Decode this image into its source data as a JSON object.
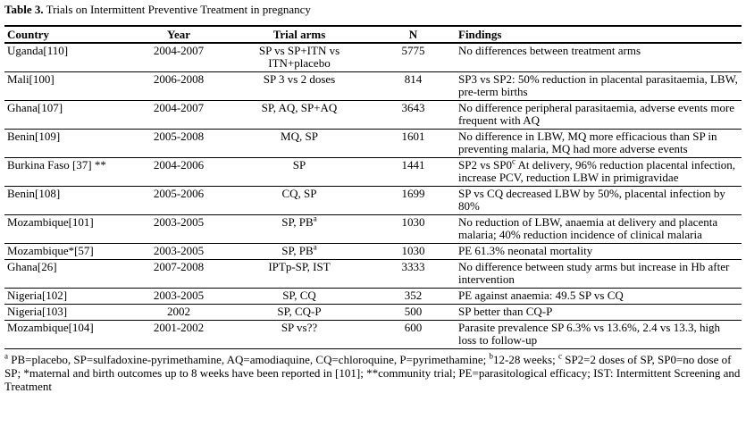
{
  "header": {
    "label": "Table 3.",
    "title": "Trials on Intermittent Preventive Treatment in pregnancy"
  },
  "table": {
    "columns": [
      "Country",
      "Year",
      "Trial arms",
      "N",
      "Findings"
    ],
    "rows": [
      [
        "Uganda[110]",
        "2004-2007",
        "SP vs SP+ITN vs ITN+placebo",
        "5775",
        "No differences between treatment arms"
      ],
      [
        "Mali[100]",
        "2006-2008",
        "SP 3 vs 2 doses",
        "814",
        "SP3 vs SP2: 50% reduction in placental parasitaemia, LBW, pre-term births"
      ],
      [
        "Ghana[107]",
        "2004-2007",
        "SP, AQ, SP+AQ",
        "3643",
        "No difference peripheral parasitaemia, adverse events more frequent with AQ"
      ],
      [
        "Benin[109]",
        "2005-2008",
        "MQ, SP",
        "1601",
        "No difference in LBW, MQ more efficacious than SP in preventing malaria, MQ had more adverse events"
      ],
      [
        "Burkina Faso [37] **",
        "2004-2006",
        "SP",
        "1441",
        [
          "SP2 vs SP0",
          {
            "sup": "c"
          },
          " At delivery, 96% reduction placental infection, increase PCV, reduction LBW in primigravidae"
        ]
      ],
      [
        "Benin[108]",
        "2005-2006",
        "CQ, SP",
        "1699",
        "SP vs CQ decreased LBW by 50%, placental infection by 80%"
      ],
      [
        "Mozambique[101]",
        "2003-2005",
        [
          "SP, PB",
          {
            "sup": "a"
          }
        ],
        "1030",
        "No reduction of LBW, anaemia at delivery and placenta malaria; 40% reduction incidence of clinical malaria"
      ],
      [
        "Mozambique*[57]",
        "2003-2005",
        [
          "SP, PB",
          {
            "sup": "a"
          }
        ],
        "1030",
        "PE 61.3% neonatal mortality"
      ],
      [
        "Ghana[26]",
        "2007-2008",
        "IPTp-SP, IST",
        "3333",
        "No difference between study arms but increase in Hb after intervention"
      ],
      [
        "Nigeria[102]",
        "2003-2005",
        "SP, CQ",
        "352",
        "PE against anaemia: 49.5 SP vs CQ"
      ],
      [
        "Nigeria[103]",
        "2002",
        "SP, CQ-P",
        "500",
        "SP better than CQ-P"
      ],
      [
        "Mozambique[104]",
        "2001-2002",
        "SP vs??",
        "600",
        "Parasite prevalence SP 6.3% vs 13.6%, 2.4 vs 13.3, high loss to follow-up"
      ]
    ]
  },
  "footnote": [
    {
      "sup": "a"
    },
    " PB=placebo, SP=sulfadoxine-pyrimethamine, AQ=amodiaquine, CQ=chloroquine, P=pyrimethamine; ",
    {
      "sup": "b"
    },
    "12-28 weeks; ",
    {
      "sup": "c"
    },
    " SP2=2 doses of SP, SP0=no dose of SP; *maternal and birth outcomes up to 8 weeks have been reported in [101]; **community trial; PE=parasitological efficacy; IST: Intermittent Screening and Treatment"
  ]
}
